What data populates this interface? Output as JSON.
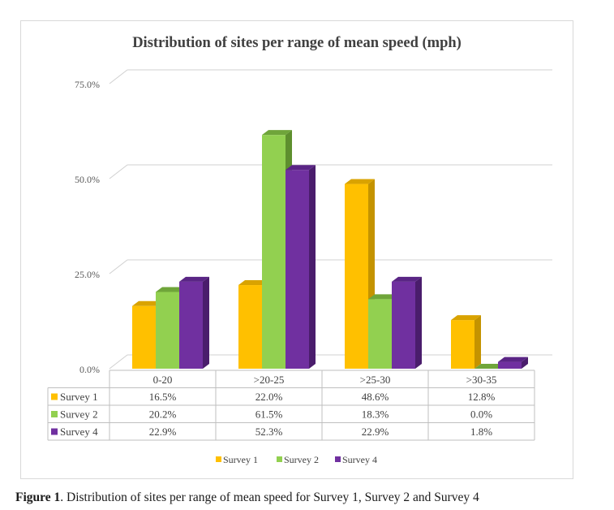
{
  "chart_data": {
    "type": "bar",
    "title": "Distribution of sites per range of mean speed (mph)",
    "categories": [
      "0-20",
      ">20-25",
      ">25-30",
      ">30-35"
    ],
    "y_ticks": [
      "0.0%",
      "25.0%",
      "50.0%",
      "75.0%"
    ],
    "ylim": [
      0,
      75
    ],
    "grid": true,
    "legend_position": "bottom",
    "series": [
      {
        "name": "Survey 1",
        "values": [
          16.5,
          22.0,
          48.6,
          12.8
        ],
        "labels": [
          "16.5%",
          "22.0%",
          "48.6%",
          "12.8%"
        ],
        "color": "#FFC000",
        "side": "#C49300",
        "top": "#D9A300"
      },
      {
        "name": "Survey 2",
        "values": [
          20.2,
          61.5,
          18.3,
          0.0
        ],
        "labels": [
          "20.2%",
          "61.5%",
          "18.3%",
          "0.0%"
        ],
        "color": "#92D050",
        "side": "#5E8F2E",
        "top": "#6FA53A"
      },
      {
        "name": "Survey 4",
        "values": [
          22.9,
          52.3,
          22.9,
          1.8
        ],
        "labels": [
          "22.9%",
          "52.3%",
          "22.9%",
          "1.8%"
        ],
        "color": "#7030A0",
        "side": "#4A1D6C",
        "top": "#5A2585"
      }
    ]
  },
  "caption": {
    "label": "Figure 1",
    "text": ". Distribution of sites per range of mean speed for Survey 1, Survey 2 and Survey 4"
  }
}
